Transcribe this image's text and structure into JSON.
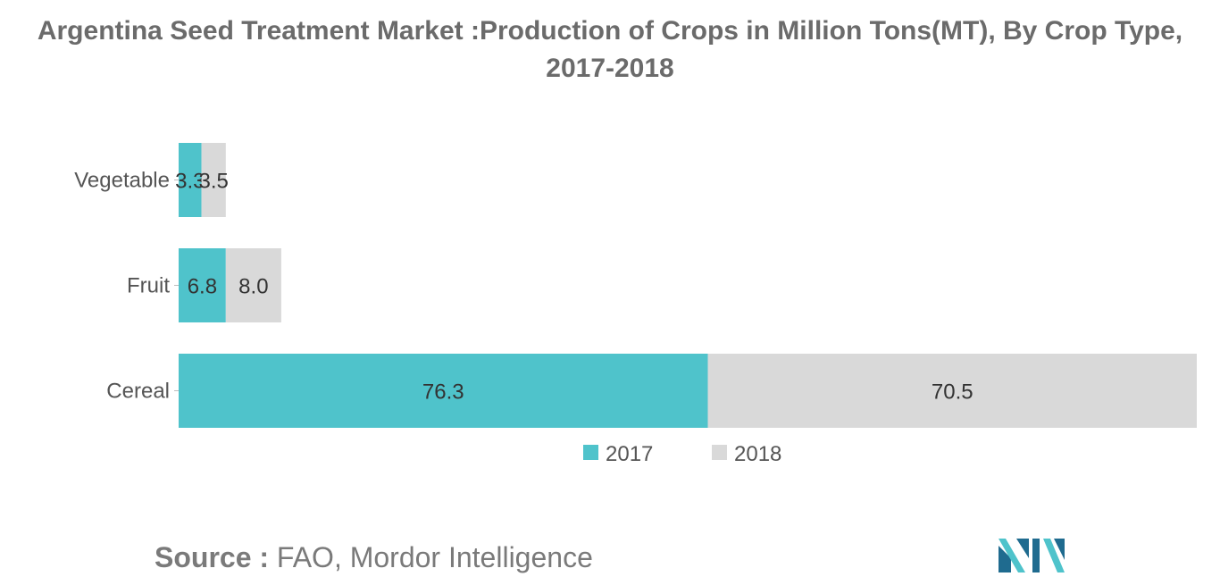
{
  "header": {
    "title_line1": "Argentina Seed Treatment Market :Production of Crops in Million Tons(MT), By Crop Type,",
    "title_line2": "2017-2018"
  },
  "chart_data": {
    "type": "bar",
    "orientation": "horizontal",
    "stacked": true,
    "categories": [
      "Vegetable",
      "Fruit",
      "Cereal"
    ],
    "series": [
      {
        "name": "2017",
        "values": [
          3.3,
          6.8,
          76.3
        ],
        "color": "#4fc3cb",
        "labels": [
          "3.3",
          "6.8",
          "76.3"
        ]
      },
      {
        "name": "2018",
        "values": [
          3.5,
          8.0,
          70.5
        ],
        "color": "#d9d9d9",
        "labels": [
          "3.5",
          "8.0",
          "70.5"
        ]
      }
    ],
    "xlim": [
      0,
      146.8
    ],
    "grid": false,
    "legend": "bottom"
  },
  "footer": {
    "source_label": "Source :",
    "source_text": "FAO, Mordor Intelligence"
  },
  "colors": {
    "series_2017": "#4fc3cb",
    "series_2018": "#d9d9d9",
    "logo_dark": "#1f6b8f",
    "logo_light": "#4fc3cb"
  },
  "logo": {
    "icon": "mordor-intelligence-logo-icon"
  }
}
